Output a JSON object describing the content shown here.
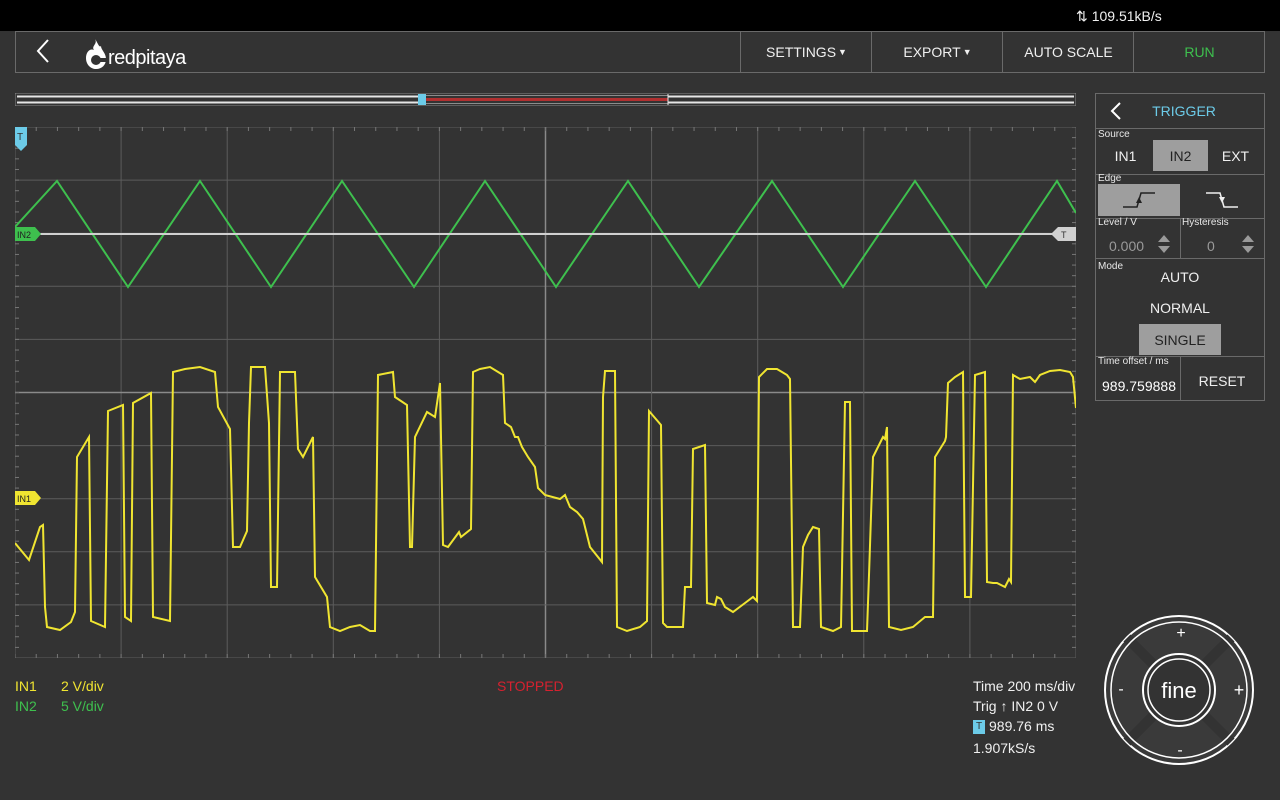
{
  "status": {
    "net_speed": "109.51kB/s"
  },
  "navbar": {
    "logo_text": "redpitaya",
    "settings": "SETTINGS",
    "export": "EXPORT",
    "autoscale": "AUTO SCALE",
    "run": "RUN"
  },
  "markers": {
    "trigger": "T",
    "in2": "IN2",
    "in1": "IN1",
    "trig_level": "T"
  },
  "legend": {
    "in1_name": "IN1",
    "in1_scale": "2 V/div",
    "in2_name": "IN2",
    "in2_scale": "5 V/div",
    "state": "STOPPED"
  },
  "info": {
    "time": "Time 200 ms/div",
    "trig": "Trig ↑ IN2 0 V",
    "tbadge": "T",
    "offset": "989.76 ms",
    "rate": "1.907kS/s"
  },
  "trigger_panel": {
    "title": "TRIGGER",
    "source_label": "Source",
    "sources": [
      "IN1",
      "IN2",
      "EXT"
    ],
    "source_selected": "IN2",
    "edge_label": "Edge",
    "edge_selected": "rising",
    "level_label": "Level / V",
    "level_value": "0.000",
    "hyst_label": "Hysteresis",
    "hyst_value": "0",
    "mode_label": "Mode",
    "modes": [
      "AUTO",
      "NORMAL",
      "SINGLE"
    ],
    "mode_selected": "SINGLE",
    "offset_label": "Time offset / ms",
    "offset_value": "989.759888",
    "reset": "RESET"
  },
  "jog": {
    "center": "fine",
    "plus": "+",
    "minus": "-"
  },
  "colors": {
    "in1": "#f0e531",
    "in2": "#3ec04e",
    "trigger": "#6ccbe8",
    "stopped": "#d6212f",
    "run": "#3ec04e",
    "background": "#333333",
    "grid": "#5c5c5c"
  }
}
